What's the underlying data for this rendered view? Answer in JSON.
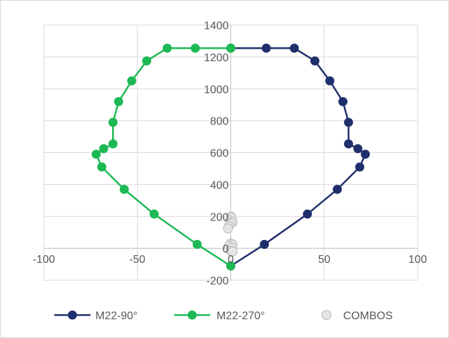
{
  "chart_data": {
    "type": "scatter",
    "title": "",
    "xlabel": "",
    "ylabel": "",
    "xlim": [
      -100,
      100
    ],
    "ylim": [
      -200,
      1400
    ],
    "x_ticks": [
      -100,
      -50,
      0,
      50,
      100
    ],
    "y_ticks": [
      -200,
      0,
      200,
      400,
      600,
      800,
      1000,
      1200,
      1400
    ],
    "grid": true,
    "legend_position": "bottom",
    "series": [
      {
        "name": "M22-90°",
        "style": "line-markers",
        "color": "#1f2f6b",
        "points": [
          [
            0,
            -110
          ],
          [
            18,
            25
          ],
          [
            41,
            215
          ],
          [
            57,
            370
          ],
          [
            69,
            510
          ],
          [
            72,
            590
          ],
          [
            68,
            625
          ],
          [
            63,
            655
          ],
          [
            63,
            790
          ],
          [
            60,
            920
          ],
          [
            53,
            1050
          ],
          [
            45,
            1175
          ],
          [
            34,
            1255
          ],
          [
            19,
            1255
          ],
          [
            0,
            1255
          ]
        ]
      },
      {
        "name": "M22-270°",
        "style": "line-markers",
        "color": "#1db954",
        "points": [
          [
            0,
            -110
          ],
          [
            -18,
            25
          ],
          [
            -41,
            215
          ],
          [
            -57,
            370
          ],
          [
            -69,
            510
          ],
          [
            -72,
            590
          ],
          [
            -68,
            625
          ],
          [
            -63,
            655
          ],
          [
            -63,
            790
          ],
          [
            -60,
            920
          ],
          [
            -53,
            1050
          ],
          [
            -45,
            1175
          ],
          [
            -34,
            1255
          ],
          [
            -19,
            1255
          ],
          [
            0,
            1255
          ]
        ]
      },
      {
        "name": "COMBOS",
        "style": "markers",
        "color": "#d9d9d9",
        "points": [
          [
            0,
            200
          ],
          [
            0.5,
            190
          ],
          [
            -0.5,
            175
          ],
          [
            1,
            165
          ],
          [
            0,
            155
          ],
          [
            -1,
            140
          ],
          [
            -1.5,
            125
          ],
          [
            0,
            30
          ],
          [
            1,
            25
          ],
          [
            -1,
            15
          ],
          [
            0.5,
            5
          ],
          [
            0,
            -15
          ],
          [
            1,
            -20
          ]
        ]
      }
    ]
  }
}
